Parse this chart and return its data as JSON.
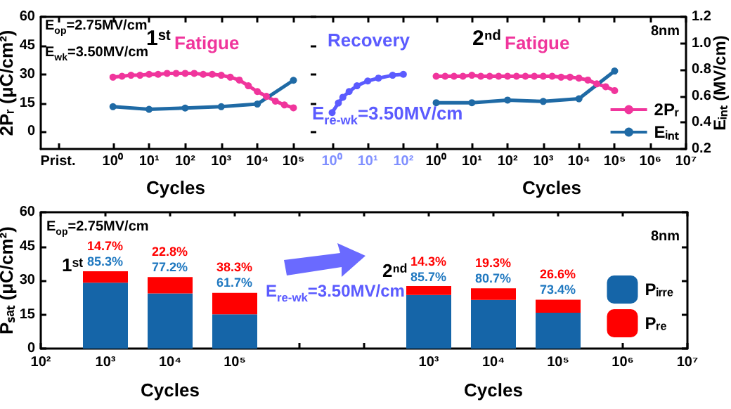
{
  "chart_data": [
    {
      "type": "line",
      "ylabel": "2Pᵣ (μC/cm²)",
      "xlabel": "Cycles",
      "log": "x",
      "marker": "circle",
      "tick_labels": "xy",
      "xlim": [
        0.01,
        300000
      ],
      "xticks": [
        {
          "value": 0.03,
          "label": "Prist."
        },
        {
          "value": 1,
          "label": "10⁰"
        },
        {
          "value": 10,
          "label": "10¹"
        },
        {
          "value": 100,
          "label": "10²"
        },
        {
          "value": 1000,
          "label": "10³"
        },
        {
          "value": 10000,
          "label": "10⁴"
        },
        {
          "value": 100000,
          "label": "10⁵"
        }
      ],
      "ylim": [
        -9,
        60
      ],
      "yticks": [
        0,
        15,
        30,
        45,
        60
      ],
      "y2lim": [
        0.2,
        1.2
      ],
      "series": [
        {
          "color": "#f0359c",
          "x": [
            1,
            1.78,
            3.16,
            5.62,
            10,
            17.8,
            31.6,
            56.2,
            100,
            178,
            316,
            562,
            1000,
            1778,
            3162,
            5623,
            10000,
            17783,
            31623,
            56234,
            100000
          ],
          "values": [
            28.5,
            29,
            29.5,
            29.5,
            30,
            30,
            30.5,
            30.5,
            30.5,
            30.5,
            30,
            30,
            29.5,
            28.5,
            27,
            24,
            21,
            18.5,
            16,
            14,
            12.5
          ]
        },
        {
          "color": "#1f6aa5",
          "axis": "y2",
          "x": [
            1,
            10,
            100,
            1000,
            10000,
            100000
          ],
          "values": [
            0.52,
            0.5,
            0.51,
            0.52,
            0.54,
            0.72
          ]
        }
      ],
      "annotations": [
        "E$_{op}$=2.75MV/cm",
        "E$_{wk}$=3.50MV/cm",
        "1ˢᵗ",
        "Fatigue"
      ]
    },
    {
      "type": "line",
      "log": "x",
      "marker": "circle",
      "tick_labels": "x",
      "xlim": [
        0.25,
        250
      ],
      "xticks": [
        {
          "value": 1,
          "label": "10⁰"
        },
        {
          "value": 10,
          "label": "10¹"
        },
        {
          "value": 100,
          "label": "10²"
        }
      ],
      "ylim": [
        -9,
        60
      ],
      "yticks": [
        0,
        15,
        30,
        45,
        60
      ],
      "series": [
        {
          "color": "#5b5bff",
          "x": [
            1,
            1.5,
            2,
            3,
            5,
            10,
            20,
            50,
            100
          ],
          "values": [
            10,
            15,
            18,
            21,
            24,
            26.5,
            28,
            29.5,
            30
          ]
        }
      ],
      "annotations": [
        "Recovery",
        "E$_{re-wk}$=3.50MV/cm"
      ]
    },
    {
      "type": "line",
      "y2label": "Eᵢₙₜ (MV/cm)",
      "xlabel": "Cycles",
      "log": "x",
      "marker": "circle",
      "tick_labels": "xy2",
      "legend": "bottom right",
      "xlim": [
        0.3,
        10000000
      ],
      "xticks": [
        {
          "value": 1,
          "label": "10⁰"
        },
        {
          "value": 10,
          "label": "10¹"
        },
        {
          "value": 100,
          "label": "10²"
        },
        {
          "value": 1000,
          "label": "10³"
        },
        {
          "value": 10000,
          "label": "10⁴"
        },
        {
          "value": 100000,
          "label": "10⁵"
        },
        {
          "value": 1000000,
          "label": "10⁶"
        },
        {
          "value": 10000000,
          "label": "10⁷"
        }
      ],
      "ylim": [
        -9,
        60
      ],
      "y2lim": [
        0.2,
        1.2
      ],
      "y2ticks": [
        0.2,
        0.4,
        0.6,
        0.8,
        {
          "value": 1,
          "label": "1.0"
        },
        1.2
      ],
      "series": [
        {
          "name": "2Pᵣ",
          "color": "#f0359c",
          "x": [
            1,
            1.78,
            3.16,
            5.62,
            10,
            17.8,
            31.6,
            56.2,
            100,
            178,
            316,
            562,
            1000,
            1778,
            3162,
            5623,
            10000,
            17783,
            31623,
            56234,
            100000
          ],
          "values": [
            29,
            29,
            29,
            29,
            29.5,
            29,
            29,
            29,
            29,
            29,
            29,
            29,
            29,
            29,
            28.5,
            28.5,
            28,
            27,
            25,
            23.5,
            21.5
          ]
        },
        {
          "name": "Eᵢₙₜ",
          "color": "#1f6aa5",
          "axis": "y2",
          "x": [
            1,
            10,
            100,
            1000,
            10000,
            100000
          ],
          "values": [
            0.55,
            0.55,
            0.57,
            0.56,
            0.58,
            0.79
          ]
        }
      ],
      "annotations": [
        "2ⁿᵈ",
        "Fatigue",
        "8nm"
      ]
    },
    {
      "type": "bar",
      "stacked": true,
      "ylabel": "Pₛₐₜ (μC/cm²)",
      "xlabel": "Cycles",
      "categories": [
        "10²",
        "10³",
        "10⁴",
        "10⁵",
        null
      ],
      "ylim": [
        0,
        60
      ],
      "yticks": [
        0,
        15,
        30,
        45,
        60
      ],
      "series": [
        {
          "color": "#1565a8",
          "values": [
            null,
            29,
            24.3,
            15.1,
            null
          ]
        },
        {
          "color": "#ff0000",
          "values": [
            null,
            5,
            7.2,
            9.4,
            null
          ]
        }
      ],
      "annotations": [
        "E$_{op}$=2.75MV/cm",
        "1ˢᵗ",
        "E$_{re-wk}$=3.50MV/cm",
        {
          "text": "14.7%",
          "x": "10³",
          "y": 34
        },
        {
          "text": "85.3%",
          "x": "10³",
          "y": 34
        },
        {
          "text": "22.8%",
          "x": "10⁴",
          "y": 31.5
        },
        {
          "text": "77.2%",
          "x": "10⁴",
          "y": 31.5
        },
        {
          "text": "38.3%",
          "x": "10⁵",
          "y": 24.5
        },
        {
          "text": "61.7%",
          "x": "10⁵",
          "y": 24.5
        }
      ]
    },
    {
      "type": "bar",
      "stacked": true,
      "xlabel": "Cycles",
      "tick_labels": "x",
      "legend": "right",
      "categories": [
        null,
        null,
        "10³",
        "10⁴",
        "10⁵",
        "10⁶",
        "10⁷"
      ],
      "ylim": [
        0,
        60
      ],
      "yticks": [
        0,
        15,
        30,
        45,
        60
      ],
      "series": [
        {
          "name": "Pᵢᵣᵣₑ",
          "color": "#1565a8",
          "values": [
            null,
            null,
            23.6,
            21.4,
            15.8,
            null,
            null
          ]
        },
        {
          "name": "Pᵣₑ",
          "color": "#ff0000",
          "values": [
            null,
            null,
            3.9,
            5.1,
            5.7,
            null,
            null
          ]
        }
      ],
      "annotations": [
        "2ⁿᵈ",
        "8nm",
        {
          "text": "14.3%",
          "x": "10³",
          "y": 27.5
        },
        {
          "text": "85.7%",
          "x": "10³",
          "y": 27.5
        },
        {
          "text": "19.3%",
          "x": "10⁴",
          "y": 26.5
        },
        {
          "text": "80.7%",
          "x": "10⁴",
          "y": 26.5
        },
        {
          "text": "26.6%",
          "x": "10⁵",
          "y": 21.5
        },
        {
          "text": "73.4%",
          "x": "10⁵",
          "y": 21.5
        }
      ]
    }
  ]
}
